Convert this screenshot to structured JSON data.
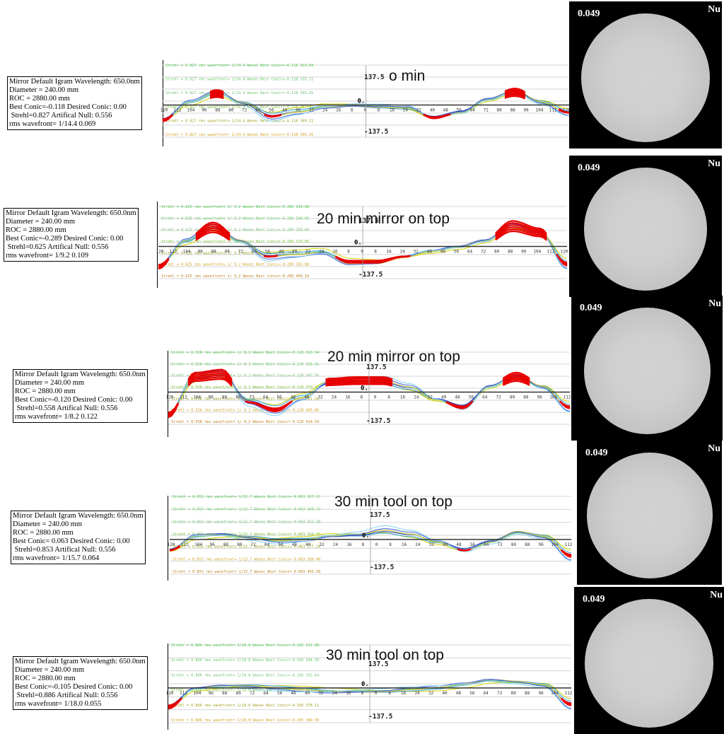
{
  "chart_data": [
    {
      "type": "line",
      "title": "o min",
      "info": [
        "Mirror Default Igram Wavelength: 650.0nm",
        "Diameter = 240.00 mm",
        "ROC = 2880.00 mm",
        "Best Conic=-0.118 Desired Conic: 0.00",
        " Strehl=0.827 Artifical Null: 0.556",
        "rms wavefront= 1/14.4 0.069"
      ],
      "legend": [
        "Strehl = 0.827 rms wavefront= 1/14.4 Waves Best Conic=-0.118 323.04",
        "Strehl = 0.827 rms wavefront= 1/14.4 Waves Best Conic=-0.118 335.11",
        "Strehl = 0.827 rms wavefront= 1/14.4 Waves Best Conic=-0.118 345.26",
        "Strehl = 0.827 rms wavefront= 1/14.4 Waves Best Conic=-0.118 357.41",
        "Strehl = 0.827 rms wavefront= 1/14.4 Waves Best Conic=-0.118 369.11",
        "Strehl = 0.827 rms wavefront= 1/14.4 Waves Best Conic=-0.118 393.26"
      ],
      "x_ticks": [
        "120",
        "112",
        "104",
        "96",
        "88",
        "80",
        "72",
        "64",
        "56",
        "48",
        "40",
        "32",
        "24",
        "16",
        "8",
        "0",
        "8",
        "16",
        "24",
        "32",
        "40",
        "48",
        "56",
        "64",
        "72",
        "80",
        "88",
        "96",
        "104",
        "112",
        "120"
      ],
      "ylim": [
        -137.5,
        137.5
      ],
      "ymax_label": "137.5",
      "ymin_label": "-137.5",
      "zero_label": "0.",
      "x": [
        -120,
        -104,
        -88,
        -72,
        -56,
        -40,
        -24,
        -8,
        8,
        24,
        40,
        56,
        72,
        88,
        104,
        120
      ],
      "profile": [
        -60,
        10,
        45,
        5,
        -45,
        -25,
        -5,
        0,
        -5,
        -10,
        -50,
        -30,
        20,
        50,
        10,
        -30
      ],
      "null_value": "0.049",
      "null_label": "Nu"
    },
    {
      "type": "line",
      "title": "20 min mirror on top",
      "info": [
        "Mirror Default Igram Wavelength: 650.0nm",
        "Diameter = 240.00 mm",
        "ROC = 2880.00 mm",
        "Best Conic=-0.289 Desired Conic: 0.00",
        " Strehl=0.625 Artifical Null: 0.556",
        "rms wavefront= 1/9.2 0.109"
      ],
      "legend": [
        "Strehl = 0.625 rms wavefront= 1/ 9.2 Waves Best Conic=-0.289 334.80",
        "Strehl = 0.625 rms wavefront= 1/ 9.2 Waves Best Conic=-0.289 346.05",
        "Strehl = 0.625 rms wavefront= 1/ 9.2 Waves Best Conic=-0.289 358.60",
        "Strehl = 0.625 rms wavefront= 1/ 9.2 Waves Best Conic=-0.289 370.05",
        "Strehl = 0.625 rms wavefront= 1/ 9.2 Waves Best Conic=-0.289 381.80",
        "Strehl = 0.625 rms wavefront= 1/ 9.2 Waves Best Conic=-0.289 393.80",
        "Strehl = 0.625 rms wavefront= 1/ 9.2 Waves Best Conic=-0.289 404.10"
      ],
      "x_ticks": [
        "120",
        "112",
        "104",
        "96",
        "88",
        "80",
        "72",
        "64",
        "56",
        "48",
        "40",
        "32",
        "24",
        "16",
        "8",
        "0",
        "8",
        "16",
        "24",
        "32",
        "40",
        "48",
        "56",
        "64",
        "72",
        "80",
        "88",
        "96",
        "104",
        "112",
        "120"
      ],
      "ylim": [
        -137.5,
        137.5
      ],
      "ymax_label": "137.5",
      "ymin_label": "-137.5",
      "zero_label": "0.",
      "x": [
        -120,
        -104,
        -88,
        -72,
        -56,
        -40,
        -24,
        -8,
        8,
        24,
        40,
        56,
        72,
        88,
        104,
        120
      ],
      "profile": [
        -80,
        20,
        75,
        20,
        -40,
        -30,
        -20,
        -60,
        -60,
        -40,
        -20,
        -5,
        20,
        80,
        55,
        -70
      ],
      "null_value": "0.049",
      "null_label": "Nu"
    },
    {
      "type": "line",
      "title": "20 min mirror on top",
      "info": [
        "Mirror Default Igram Wavelength: 650.0nm",
        "Diameter = 240.00 mm",
        "ROC = 2880.00 mm",
        "Best Conic=-0.120 Desired Conic: 0.00",
        " Strehl=0.558 Artifical Null: 0.556",
        "rms wavefront= 1/8.2 0.122"
      ],
      "legend": [
        "Strehl = 0.558 rms wavefront= 1/ 8.2 Waves Best Conic=-0.120 323.54",
        "Strehl = 0.558 rms wavefront= 1/ 8.2 Waves Best Conic=-0.120 335.41",
        "Strehl = 0.558 rms wavefront= 1/ 8.2 Waves Best Conic=-0.120 347.56",
        "Strehl = 0.558 rms wavefront= 1/ 8.2 Waves Best Conic=-0.120 359.30",
        "Strehl = 0.558 rms wavefront= 1/ 8.2 Waves Best Conic=-0.120 381.50",
        "Strehl = 0.558 rms wavefront= 1/ 8.2 Waves Best Conic=-0.120 405.00",
        "Strehl = 0.558 rms wavefront= 1/ 8.2 Waves Best Conic=-0.120 414.54"
      ],
      "x_ticks": [
        "120",
        "112",
        "104",
        "96",
        "88",
        "80",
        "72",
        "64",
        "56",
        "48",
        "40",
        "32",
        "24",
        "16",
        "8",
        "0",
        "8",
        "16",
        "24",
        "32",
        "40",
        "48",
        "56",
        "64",
        "72",
        "80",
        "88",
        "96",
        "104",
        "112"
      ],
      "ylim": [
        -137.5,
        137.5
      ],
      "ymax_label": "137.5",
      "ymin_label": "-137.5",
      "zero_label": "0.",
      "x": [
        -120,
        -104,
        -88,
        -72,
        -56,
        -40,
        -24,
        -8,
        8,
        24,
        40,
        56,
        72,
        88,
        104,
        120
      ],
      "profile": [
        -90,
        60,
        70,
        -40,
        -70,
        -20,
        40,
        45,
        45,
        20,
        -30,
        -60,
        20,
        60,
        20,
        -60
      ],
      "null_value": "0.049",
      "null_label": "Nu"
    },
    {
      "type": "line",
      "title": "30 min tool on top",
      "info": [
        "Mirror Default Igram Wavelength: 650.0nm",
        "Diameter = 240.00 mm",
        "ROC = 2880.00 mm",
        "Best Conic= 0.063 Desired Conic: 0.00",
        " Strehl=0.853 Artifical Null: 0.556",
        "rms wavefront= 1/15.7 0.064"
      ],
      "legend": [
        "Strehl = 0.853 rms wavefront= 1/15.7 Waves Best Conic= 0.063 327.17",
        "Strehl = 0.853 rms wavefront= 1/15.7 Waves Best Conic= 0.063 340.24",
        "Strehl = 0.853 rms wavefront= 1/15.7 Waves Best Conic= 0.063 352.30",
        "Strehl = 0.853 rms wavefront= 1/15.7 Waves Best Conic= 0.063 364.60",
        "Strehl = 0.853 rms wavefront= 1/15.7 Waves Best Conic= 0.063 377.10",
        "Strehl = 0.853 rms wavefront= 1/15.7 Waves Best Conic= 0.063 389.40",
        "Strehl = 0.853 rms wavefront= 1/15.7 Waves Best Conic= 0.063 401.58"
      ],
      "x_ticks": [
        "120",
        "112",
        "104",
        "96",
        "88",
        "80",
        "72",
        "64",
        "56",
        "48",
        "40",
        "32",
        "24",
        "16",
        "8",
        "0",
        "8",
        "16",
        "24",
        "32",
        "40",
        "48",
        "56",
        "64",
        "72",
        "80",
        "88",
        "96",
        "104",
        "112"
      ],
      "ylim": [
        -137.5,
        137.5
      ],
      "ymax_label": "137.5",
      "ymin_label": "-137.5",
      "zero_label": "0.",
      "x": [
        -120,
        -104,
        -88,
        -72,
        -56,
        -40,
        -24,
        -8,
        8,
        24,
        40,
        56,
        72,
        88,
        104,
        120
      ],
      "profile": [
        -40,
        10,
        15,
        5,
        -5,
        0,
        15,
        20,
        35,
        20,
        -10,
        -40,
        -10,
        25,
        10,
        -60
      ],
      "null_value": "0.049",
      "null_label": "Nu"
    },
    {
      "type": "line",
      "title": "30 min tool on top",
      "info": [
        "Mirror Default Igram Wavelength: 650.0nm",
        "Diameter = 240.00 mm",
        "ROC = 2880.00 mm",
        "Best Conic=-0.105 Desired Conic: 0.00",
        " Strehl=0.886 Artifical Null: 0.556",
        "rms wavefront= 1/18.0 0.055"
      ],
      "legend": [
        "Strehl = 0.886 rms wavefront= 1/18.0 Waves Best Conic=-0.105 331.88",
        "Strehl = 0.886 rms wavefront= 1/18.0 Waves Best Conic=-0.105 344.39",
        "Strehl = 0.886 rms wavefront= 1/18.0 Waves Best Conic=-0.105 355.64",
        "Strehl = 0.886 rms wavefront= 1/18.0 Waves Best Conic=-0.105 367.59",
        "Strehl = 0.886 rms wavefront= 1/18.0 Waves Best Conic=-0.105 378.11",
        "Strehl = 0.886 rms wavefront= 1/18.0 Waves Best Conic=-0.105 389.39"
      ],
      "x_ticks": [
        "120",
        "112",
        "104",
        "96",
        "88",
        "80",
        "72",
        "64",
        "56",
        "48",
        "40",
        "32",
        "24",
        "16",
        "8",
        "0",
        "8",
        "16",
        "24",
        "32",
        "40",
        "48",
        "56",
        "64",
        "72",
        "80",
        "88",
        "96",
        "104",
        "112"
      ],
      "ylim": [
        -137.5,
        137.5
      ],
      "ymax_label": "137.5",
      "ymin_label": "-137.5",
      "zero_label": "0.",
      "x": [
        -120,
        -104,
        -88,
        -72,
        -56,
        -40,
        -24,
        -8,
        8,
        24,
        40,
        56,
        72,
        88,
        104,
        120
      ],
      "profile": [
        -70,
        -5,
        5,
        5,
        0,
        -5,
        -10,
        -10,
        -10,
        -5,
        0,
        10,
        25,
        20,
        10,
        -60
      ],
      "null_value": "0.049",
      "null_label": "Nu"
    }
  ]
}
